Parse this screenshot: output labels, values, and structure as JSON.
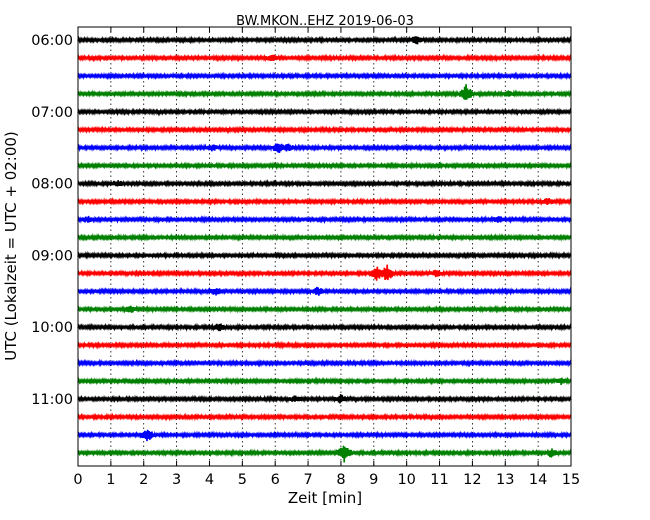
{
  "chart_data": {
    "type": "line",
    "title": "BW.MKON..EHZ 2019-06-03",
    "xlabel": "Zeit  [min]",
    "ylabel": "UTC (Lokalzeit = UTC + 02:00)",
    "xlim": [
      0,
      15
    ],
    "x_ticks": [
      "0",
      "1",
      "2",
      "3",
      "4",
      "5",
      "6",
      "7",
      "8",
      "9",
      "10",
      "11",
      "12",
      "13",
      "14",
      "15"
    ],
    "y_ticks": [
      {
        "label": "06:00",
        "trace": 0
      },
      {
        "label": "07:00",
        "trace": 4
      },
      {
        "label": "08:00",
        "trace": 8
      },
      {
        "label": "09:00",
        "trace": 12
      },
      {
        "label": "10:00",
        "trace": 16
      },
      {
        "label": "11:00",
        "trace": 20
      }
    ],
    "grid": "vertical dotted",
    "trace_colors": [
      "#000000",
      "#ff0000",
      "#0000ff",
      "#008000"
    ],
    "traces": [
      {
        "start": "06:00",
        "events": [
          [
            10.3,
            4
          ]
        ]
      },
      {
        "start": "06:15",
        "events": [
          [
            5.9,
            3
          ]
        ]
      },
      {
        "start": "06:30",
        "events": []
      },
      {
        "start": "06:45",
        "events": [
          [
            11.8,
            9
          ],
          [
            13.1,
            3
          ]
        ]
      },
      {
        "start": "07:00",
        "events": []
      },
      {
        "start": "07:15",
        "events": []
      },
      {
        "start": "07:30",
        "events": [
          [
            4.1,
            3
          ],
          [
            6.1,
            5
          ],
          [
            6.4,
            4
          ]
        ]
      },
      {
        "start": "07:45",
        "events": []
      },
      {
        "start": "08:00",
        "events": [
          [
            1.2,
            3
          ]
        ]
      },
      {
        "start": "08:15",
        "events": [
          [
            14.3,
            3
          ]
        ]
      },
      {
        "start": "08:30",
        "events": [
          [
            0.3,
            3
          ],
          [
            12.8,
            3
          ]
        ]
      },
      {
        "start": "08:45",
        "events": []
      },
      {
        "start": "09:00",
        "events": []
      },
      {
        "start": "09:15",
        "events": [
          [
            9.1,
            7
          ],
          [
            9.4,
            8
          ],
          [
            10.9,
            3
          ]
        ]
      },
      {
        "start": "09:30",
        "events": [
          [
            4.2,
            4
          ],
          [
            7.3,
            4
          ]
        ]
      },
      {
        "start": "09:45",
        "events": [
          [
            1.6,
            3
          ]
        ]
      },
      {
        "start": "10:00",
        "events": [
          [
            4.3,
            4
          ]
        ]
      },
      {
        "start": "10:15",
        "events": []
      },
      {
        "start": "10:30",
        "events": []
      },
      {
        "start": "10:45",
        "events": [
          [
            14.7,
            3
          ]
        ]
      },
      {
        "start": "11:00",
        "events": [
          [
            6.6,
            3
          ],
          [
            8.0,
            4
          ]
        ]
      },
      {
        "start": "11:15",
        "events": []
      },
      {
        "start": "11:30",
        "events": [
          [
            2.1,
            6
          ]
        ]
      },
      {
        "start": "11:45",
        "events": [
          [
            8.1,
            9
          ],
          [
            14.4,
            4
          ]
        ]
      }
    ]
  }
}
